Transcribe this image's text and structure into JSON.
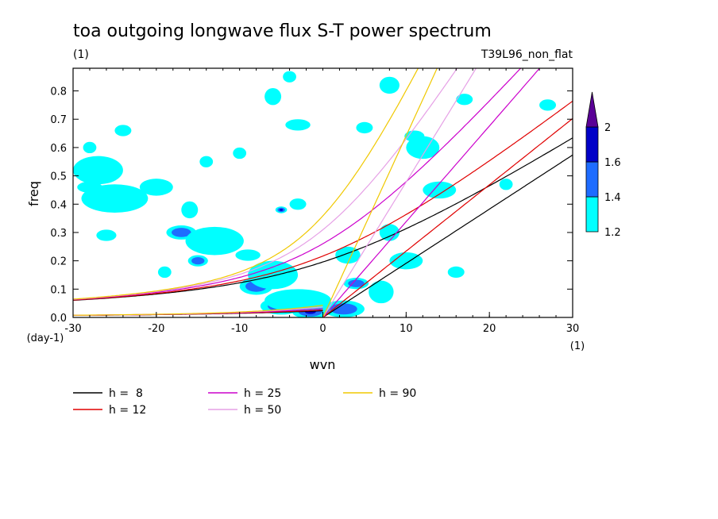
{
  "chart_data": {
    "type": "line",
    "title": "toa outgoing longwave flux S-T power spectrum",
    "subtitle_left": "(1)",
    "subtitle_right": "T39L96_non_flat",
    "xlabel": "wvn",
    "ylabel": "freq",
    "x_unit": "(1)",
    "y_unit": "(day-1)",
    "xlim": [
      -30,
      30
    ],
    "ylim": [
      0,
      0.88
    ],
    "x_ticks": [
      -30,
      -20,
      -10,
      0,
      10,
      20,
      30
    ],
    "x_tick_labels": [
      "-30",
      "-20",
      "-10",
      "0",
      "10",
      "20",
      "30"
    ],
    "y_ticks": [
      0,
      0.1,
      0.2,
      0.3,
      0.4,
      0.5,
      0.6,
      0.7,
      0.8
    ],
    "y_tick_labels": [
      "0.0",
      "0.1",
      "0.2",
      "0.3",
      "0.4",
      "0.5",
      "0.6",
      "0.7",
      "0.8"
    ],
    "grid": false,
    "series": [
      {
        "name": "h =  8",
        "h": 8,
        "color": "#000000"
      },
      {
        "name": "h = 12",
        "h": 12,
        "color": "#e00000"
      },
      {
        "name": "h = 25",
        "h": 25,
        "color": "#cc00cc"
      },
      {
        "name": "h = 50",
        "h": 50,
        "color": "#e6a0e6"
      },
      {
        "name": "h = 90",
        "h": 90,
        "color": "#f0c800"
      }
    ],
    "colorbar": {
      "levels": [
        "1.2",
        "1.4",
        "1.6",
        "2"
      ],
      "colors": [
        "#00ffff",
        "#1e6cff",
        "#0000c8",
        "#5a0096"
      ]
    },
    "contours": [
      {
        "x": -1.5,
        "y": 0.02,
        "rx": 2.2,
        "ry": 0.025,
        "level": 3
      },
      {
        "x": -5,
        "y": 0.04,
        "rx": 2.5,
        "ry": 0.03,
        "level": 2
      },
      {
        "x": -8,
        "y": 0.11,
        "rx": 2,
        "ry": 0.03,
        "level": 2
      },
      {
        "x": 2.5,
        "y": 0.03,
        "rx": 2.5,
        "ry": 0.03,
        "level": 2
      },
      {
        "x": 4,
        "y": 0.12,
        "rx": 1.5,
        "ry": 0.02,
        "level": 2
      },
      {
        "x": -17,
        "y": 0.3,
        "rx": 1.8,
        "ry": 0.025,
        "level": 2
      },
      {
        "x": -5,
        "y": 0.38,
        "rx": 0.7,
        "ry": 0.012,
        "level": 3
      },
      {
        "x": -15,
        "y": 0.2,
        "rx": 1.2,
        "ry": 0.02,
        "level": 2
      },
      {
        "x": -9,
        "y": 0.22,
        "rx": 1.5,
        "ry": 0.02,
        "level": 1
      },
      {
        "x": -28,
        "y": 0.6,
        "rx": 0.8,
        "ry": 0.02,
        "level": 1
      },
      {
        "x": 7,
        "y": 0.09,
        "rx": 1.5,
        "ry": 0.04,
        "level": 1
      },
      {
        "x": -3,
        "y": 0.06,
        "rx": 4,
        "ry": 0.04,
        "level": 1
      },
      {
        "x": -6,
        "y": 0.15,
        "rx": 3,
        "ry": 0.05,
        "level": 1
      },
      {
        "x": -13,
        "y": 0.27,
        "rx": 3.5,
        "ry": 0.05,
        "level": 1
      },
      {
        "x": -25,
        "y": 0.42,
        "rx": 4,
        "ry": 0.05,
        "level": 1
      },
      {
        "x": -27,
        "y": 0.52,
        "rx": 3,
        "ry": 0.05,
        "level": 1
      },
      {
        "x": -20,
        "y": 0.46,
        "rx": 2,
        "ry": 0.03,
        "level": 1
      },
      {
        "x": 10,
        "y": 0.2,
        "rx": 2,
        "ry": 0.03,
        "level": 1
      },
      {
        "x": 14,
        "y": 0.45,
        "rx": 2,
        "ry": 0.03,
        "level": 1
      },
      {
        "x": 12,
        "y": 0.6,
        "rx": 2,
        "ry": 0.04,
        "level": 1
      },
      {
        "x": 8,
        "y": 0.82,
        "rx": 1.2,
        "ry": 0.03,
        "level": 1
      },
      {
        "x": -6,
        "y": 0.78,
        "rx": 1,
        "ry": 0.03,
        "level": 1
      },
      {
        "x": -3,
        "y": 0.68,
        "rx": 1.5,
        "ry": 0.02,
        "level": 1
      },
      {
        "x": 5,
        "y": 0.67,
        "rx": 1,
        "ry": 0.02,
        "level": 1
      },
      {
        "x": -24,
        "y": 0.66,
        "rx": 1,
        "ry": 0.02,
        "level": 1
      },
      {
        "x": -14,
        "y": 0.55,
        "rx": 0.8,
        "ry": 0.02,
        "level": 1
      },
      {
        "x": -16,
        "y": 0.38,
        "rx": 1,
        "ry": 0.03,
        "level": 1
      },
      {
        "x": 17,
        "y": 0.77,
        "rx": 1,
        "ry": 0.02,
        "level": 1
      },
      {
        "x": 22,
        "y": 0.47,
        "rx": 0.8,
        "ry": 0.02,
        "level": 1
      },
      {
        "x": 27,
        "y": 0.75,
        "rx": 1,
        "ry": 0.02,
        "level": 1
      },
      {
        "x": 3,
        "y": 0.22,
        "rx": 1.5,
        "ry": 0.03,
        "level": 1
      },
      {
        "x": -19,
        "y": 0.16,
        "rx": 0.8,
        "ry": 0.02,
        "level": 1
      },
      {
        "x": -28,
        "y": 0.46,
        "rx": 1.5,
        "ry": 0.02,
        "level": 1
      },
      {
        "x": 8,
        "y": 0.3,
        "rx": 1.2,
        "ry": 0.03,
        "level": 1
      },
      {
        "x": -3,
        "y": 0.4,
        "rx": 1,
        "ry": 0.02,
        "level": 1
      },
      {
        "x": -10,
        "y": 0.58,
        "rx": 0.8,
        "ry": 0.02,
        "level": 1
      },
      {
        "x": 16,
        "y": 0.16,
        "rx": 1,
        "ry": 0.02,
        "level": 1
      },
      {
        "x": -26,
        "y": 0.29,
        "rx": 1.2,
        "ry": 0.02,
        "level": 1
      },
      {
        "x": -4,
        "y": 0.85,
        "rx": 0.8,
        "ry": 0.02,
        "level": 1
      },
      {
        "x": 11,
        "y": 0.64,
        "rx": 1.2,
        "ry": 0.02,
        "level": 1
      }
    ]
  }
}
